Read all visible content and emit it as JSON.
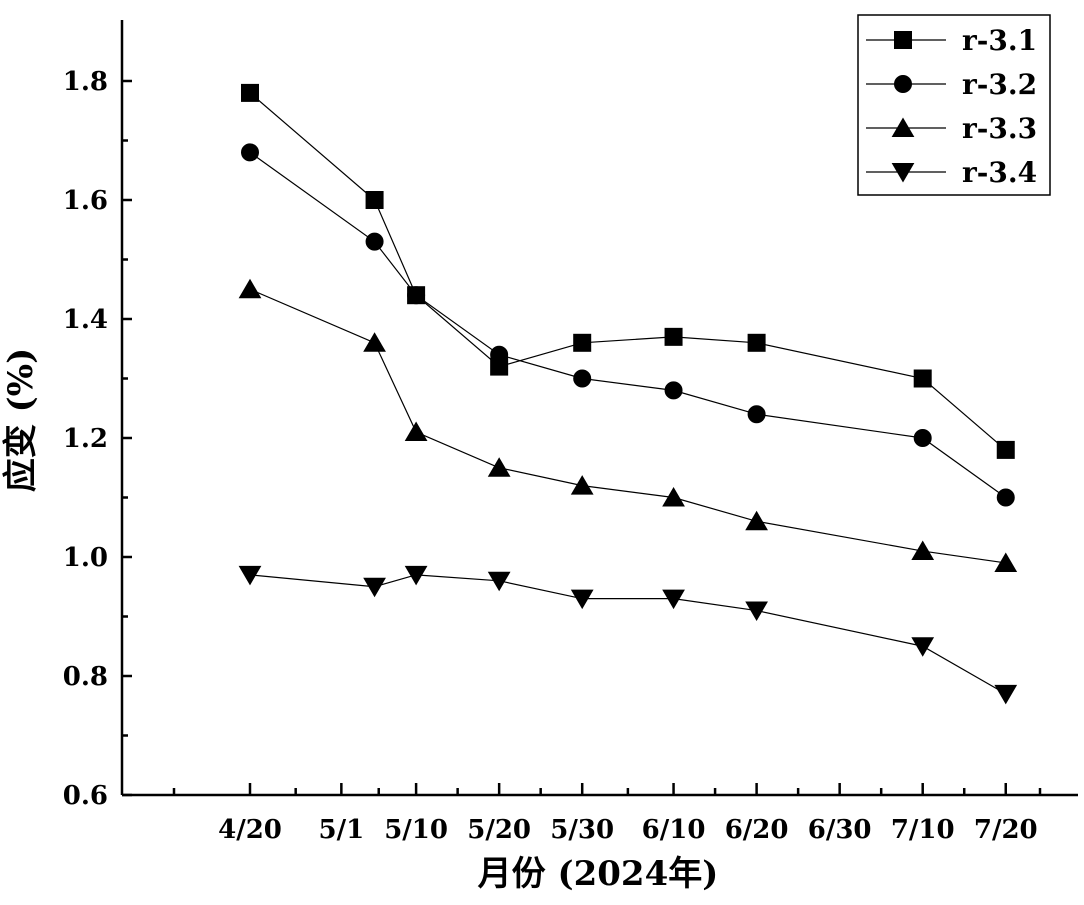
{
  "chart_data": {
    "type": "line",
    "xlabel": "月份 (2024年)",
    "ylabel": "应变 (%)",
    "x_ticks": [
      "4/20",
      "5/1",
      "5/10",
      "5/20",
      "5/30",
      "6/10",
      "6/20",
      "6/30",
      "7/10",
      "7/20"
    ],
    "y_ticks": [
      "0.6",
      "0.8",
      "1.0",
      "1.2",
      "1.4",
      "1.6",
      "1.8"
    ],
    "ylim": [
      0.6,
      1.9
    ],
    "legend_position": "top-right",
    "grid": false,
    "x": [
      "4/20",
      "5/5",
      "5/10",
      "5/20",
      "5/30",
      "6/10",
      "6/20",
      "7/10",
      "7/20"
    ],
    "series": [
      {
        "name": "r-3.1",
        "marker": "square",
        "values": [
          1.78,
          1.6,
          1.44,
          1.32,
          1.36,
          1.37,
          1.36,
          1.3,
          1.18
        ]
      },
      {
        "name": "r-3.2",
        "marker": "circle",
        "values": [
          1.68,
          1.53,
          1.44,
          1.34,
          1.3,
          1.28,
          1.24,
          1.2,
          1.1
        ]
      },
      {
        "name": "r-3.3",
        "marker": "triangle-up",
        "values": [
          1.45,
          1.36,
          1.21,
          1.15,
          1.12,
          1.1,
          1.06,
          1.01,
          0.99
        ]
      },
      {
        "name": "r-3.4",
        "marker": "triangle-down",
        "values": [
          0.97,
          0.95,
          0.97,
          0.96,
          0.93,
          0.93,
          0.91,
          0.85,
          0.77
        ]
      }
    ]
  }
}
